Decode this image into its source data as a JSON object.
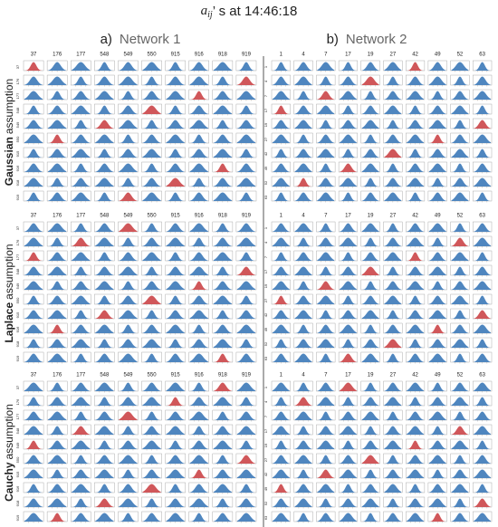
{
  "title": {
    "symbol": "a",
    "subscript": "ij",
    "text": "’ s at 14:46:18"
  },
  "networks": [
    {
      "label": "a)",
      "name": "Network 1",
      "nodes": [
        "37",
        "176",
        "177",
        "548",
        "549",
        "550",
        "915",
        "916",
        "918",
        "919"
      ]
    },
    {
      "label": "b)",
      "name": "Network 2",
      "nodes": [
        "1",
        "4",
        "7",
        "17",
        "19",
        "27",
        "42",
        "49",
        "52",
        "63"
      ]
    }
  ],
  "assumptions": [
    {
      "name": "Gaussian",
      "text": "assumption"
    },
    {
      "name": "Laplace",
      "text": "assumption"
    },
    {
      "name": "Cauchy",
      "text": "assumption"
    }
  ]
}
